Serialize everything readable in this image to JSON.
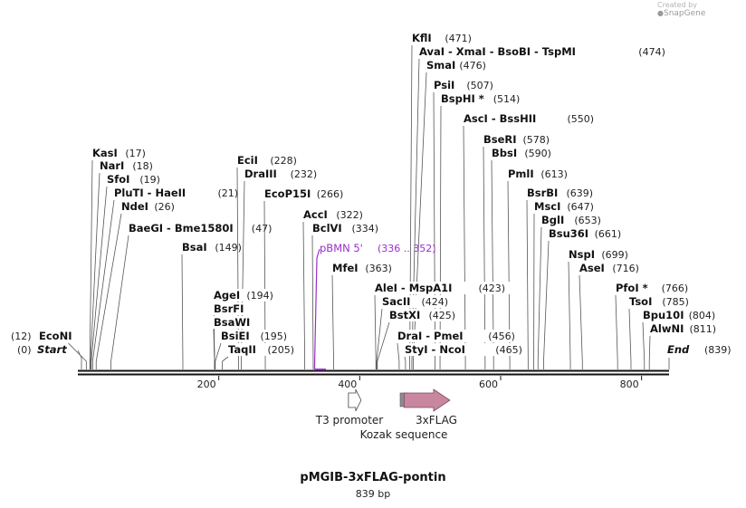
{
  "credit": {
    "prefix": "Created by",
    "brand": "SnapGene"
  },
  "title": "pMGIB-3xFLAG-pontin",
  "length_label": "839 bp",
  "sequence_length": 839,
  "colors": {
    "line": "#555555",
    "primer": "#9a30c8",
    "flag": "#c9879f",
    "kozak": "#8c8c90"
  },
  "ends": {
    "start": {
      "pos": "(0)",
      "label": "Start"
    },
    "end": {
      "label": "End",
      "pos": "(839)"
    }
  },
  "ruler": [
    "200",
    "400",
    "600",
    "800"
  ],
  "sites": [
    {
      "id": "econi",
      "parts": [
        "EcoNI"
      ],
      "pos": "(12)",
      "bp": 12,
      "side": "left"
    },
    {
      "id": "kasi",
      "parts": [
        "KasI"
      ],
      "pos": "(17)",
      "bp": 17
    },
    {
      "id": "nari",
      "parts": [
        "NarI"
      ],
      "pos": "(18)",
      "bp": 18
    },
    {
      "id": "sfoi",
      "parts": [
        "SfoI"
      ],
      "pos": "(19)",
      "bp": 19
    },
    {
      "id": "pluti",
      "parts": [
        "PluTI",
        "HaeII"
      ],
      "pos": "(21)",
      "bp": 21
    },
    {
      "id": "ndei",
      "parts": [
        "NdeI"
      ],
      "pos": "(26)",
      "bp": 26
    },
    {
      "id": "baegi",
      "parts": [
        "BaeGI",
        "Bme1580I"
      ],
      "pos": "(47)",
      "bp": 47
    },
    {
      "id": "bsai",
      "parts": [
        "BsaI"
      ],
      "pos": "(149)",
      "bp": 149
    },
    {
      "id": "ecii",
      "parts": [
        "EciI"
      ],
      "pos": "(228)",
      "bp": 228
    },
    {
      "id": "draiii",
      "parts": [
        "DraIII"
      ],
      "pos": "(232)",
      "bp": 232
    },
    {
      "id": "ecop15i",
      "parts": [
        "EcoP15I"
      ],
      "pos": "(266)",
      "bp": 266
    },
    {
      "id": "agei",
      "parts": [
        "AgeI"
      ],
      "pos": "(194)",
      "bp": 194
    },
    {
      "id": "bsrfi",
      "parts": [
        "BsrFI"
      ],
      "pos": "",
      "bp": 194
    },
    {
      "id": "bsawi",
      "parts": [
        "BsaWI"
      ],
      "pos": "",
      "bp": 194
    },
    {
      "id": "bsiei",
      "parts": [
        "BsiEI"
      ],
      "pos": "(195)",
      "bp": 195
    },
    {
      "id": "taqii",
      "parts": [
        "TaqII"
      ],
      "pos": "(205)",
      "bp": 205
    },
    {
      "id": "acci",
      "parts": [
        "AccI"
      ],
      "pos": "(322)",
      "bp": 322
    },
    {
      "id": "bclvi",
      "parts": [
        "BclVI"
      ],
      "pos": "(334)",
      "bp": 334
    },
    {
      "id": "mfei",
      "parts": [
        "MfeI"
      ],
      "pos": "(363)",
      "bp": 363
    },
    {
      "id": "klfi",
      "parts": [
        "KflI"
      ],
      "pos": "(471)",
      "bp": 471
    },
    {
      "id": "avai",
      "parts": [
        "AvaI",
        "XmaI",
        "BsoBI",
        "TspMI"
      ],
      "pos": "(474)",
      "bp": 474
    },
    {
      "id": "smai",
      "parts": [
        "SmaI"
      ],
      "pos": "(476)",
      "bp": 476
    },
    {
      "id": "psii",
      "parts": [
        "PsiI"
      ],
      "pos": "(507)",
      "bp": 507
    },
    {
      "id": "bsphi",
      "parts": [
        "BspHI *"
      ],
      "pos": "(514)",
      "bp": 514
    },
    {
      "id": "asci",
      "parts": [
        "AscI",
        "BssHII"
      ],
      "pos": "(550)",
      "bp": 550
    },
    {
      "id": "bseri",
      "parts": [
        "BseRI"
      ],
      "pos": "(578)",
      "bp": 578
    },
    {
      "id": "bbsi",
      "parts": [
        "BbsI"
      ],
      "pos": "(590)",
      "bp": 590
    },
    {
      "id": "pmlii",
      "parts": [
        "PmlI"
      ],
      "pos": "(613)",
      "bp": 613
    },
    {
      "id": "bsrbi",
      "parts": [
        "BsrBI"
      ],
      "pos": "(639)",
      "bp": 639
    },
    {
      "id": "msci",
      "parts": [
        "MscI"
      ],
      "pos": "(647)",
      "bp": 647
    },
    {
      "id": "bgli",
      "parts": [
        "BglI"
      ],
      "pos": "(653)",
      "bp": 653
    },
    {
      "id": "bsu36i",
      "parts": [
        "Bsu36I"
      ],
      "pos": "(661)",
      "bp": 661
    },
    {
      "id": "nspi",
      "parts": [
        "NspI"
      ],
      "pos": "(699)",
      "bp": 699
    },
    {
      "id": "asei",
      "parts": [
        "AseI"
      ],
      "pos": "(716)",
      "bp": 716
    },
    {
      "id": "pfoi",
      "parts": [
        "PfoI *"
      ],
      "pos": "(766)",
      "bp": 766
    },
    {
      "id": "tsoi",
      "parts": [
        "TsoI"
      ],
      "pos": "(785)",
      "bp": 785
    },
    {
      "id": "bpu10i",
      "parts": [
        "Bpu10I"
      ],
      "pos": "(804)",
      "bp": 804
    },
    {
      "id": "alwni",
      "parts": [
        "AlwNI"
      ],
      "pos": "(811)",
      "bp": 811
    },
    {
      "id": "alei",
      "parts": [
        "AleI",
        "MspA1I"
      ],
      "pos": "(423)",
      "bp": 423
    },
    {
      "id": "sacii",
      "parts": [
        "SacII"
      ],
      "pos": "(424)",
      "bp": 424
    },
    {
      "id": "bstxi",
      "parts": [
        "BstXI"
      ],
      "pos": "(425)",
      "bp": 425
    },
    {
      "id": "drai",
      "parts": [
        "DraI",
        "PmeI"
      ],
      "pos": "(456)",
      "bp": 456
    },
    {
      "id": "styi",
      "parts": [
        "StyI",
        "NcoI"
      ],
      "pos": "(465)",
      "bp": 465
    }
  ],
  "primer": {
    "label": "pBMN 5'",
    "range": "(336 .. 352)",
    "start": 336,
    "end": 352
  },
  "features": [
    {
      "id": "t3",
      "label": "T3 promoter",
      "start": 384,
      "end": 402
    },
    {
      "id": "kozak",
      "label": "Kozak sequence",
      "start": 444,
      "end": 454
    },
    {
      "id": "flag",
      "label": "3xFLAG",
      "start": 463,
      "end": 528
    }
  ]
}
